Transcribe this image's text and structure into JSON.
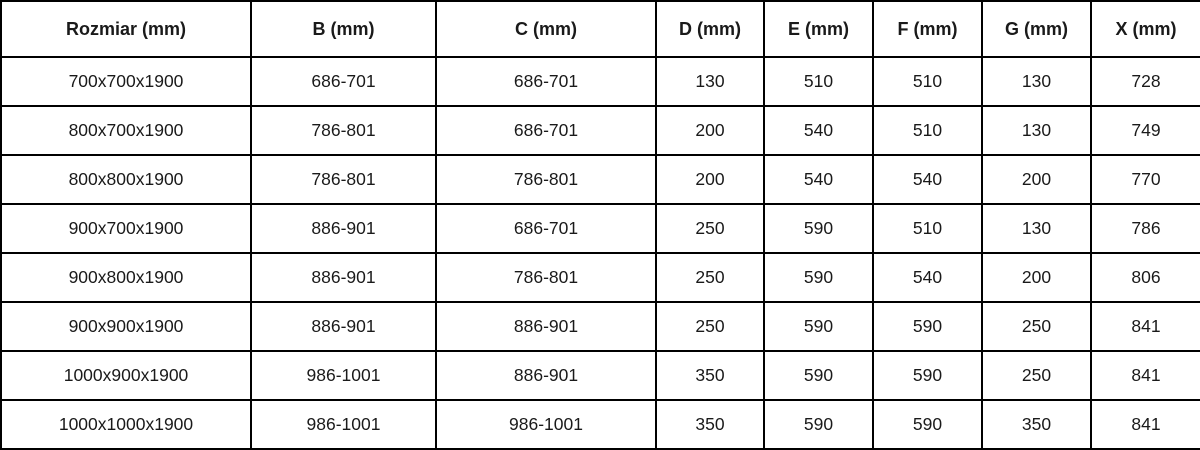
{
  "chart_data": {
    "type": "table",
    "title": "",
    "columns": [
      "Rozmiar (mm)",
      "B (mm)",
      "C (mm)",
      "D (mm)",
      "E (mm)",
      "F (mm)",
      "G (mm)",
      "X (mm)"
    ],
    "rows": [
      [
        "700x700x1900",
        "686-701",
        "686-701",
        "130",
        "510",
        "510",
        "130",
        "728"
      ],
      [
        "800x700x1900",
        "786-801",
        "686-701",
        "200",
        "540",
        "510",
        "130",
        "749"
      ],
      [
        "800x800x1900",
        "786-801",
        "786-801",
        "200",
        "540",
        "540",
        "200",
        "770"
      ],
      [
        "900x700x1900",
        "886-901",
        "686-701",
        "250",
        "590",
        "510",
        "130",
        "786"
      ],
      [
        "900x800x1900",
        "886-901",
        "786-801",
        "250",
        "590",
        "540",
        "200",
        "806"
      ],
      [
        "900x900x1900",
        "886-901",
        "886-901",
        "250",
        "590",
        "590",
        "250",
        "841"
      ],
      [
        "1000x900x1900",
        "986-1001",
        "886-901",
        "350",
        "590",
        "590",
        "250",
        "841"
      ],
      [
        "1000x1000x1900",
        "986-1001",
        "986-1001",
        "350",
        "590",
        "590",
        "350",
        "841"
      ]
    ],
    "colors": {
      "border": "#000000",
      "text": "#1a1a1a",
      "background": "#ffffff"
    }
  }
}
